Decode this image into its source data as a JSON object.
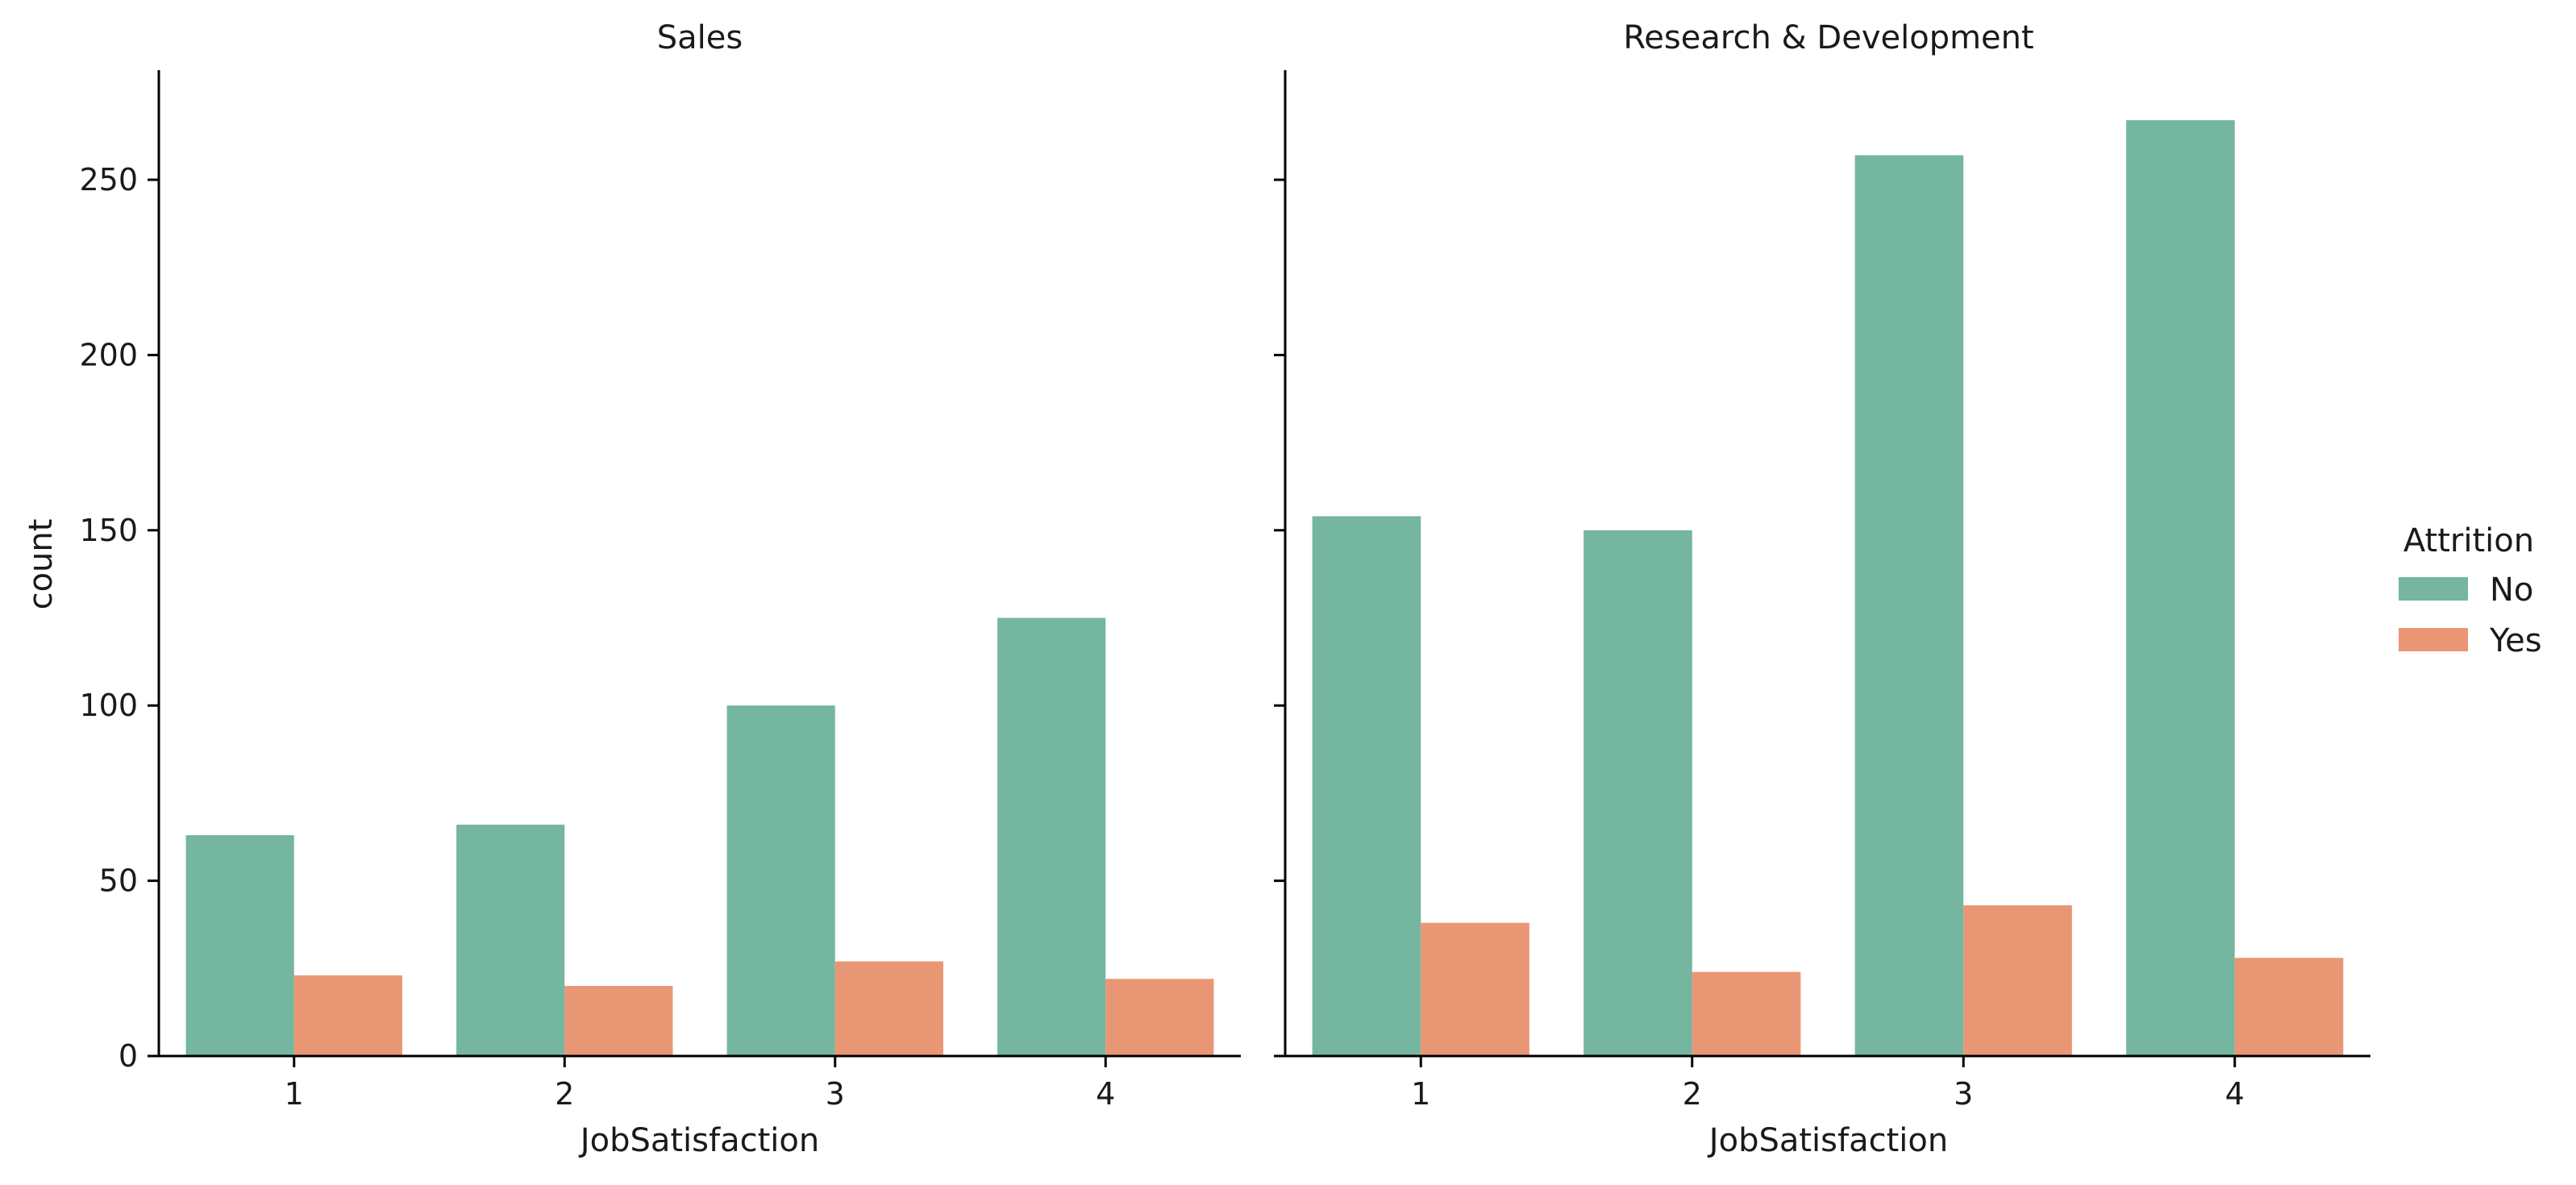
{
  "chart_data": [
    {
      "type": "bar",
      "title": "Sales",
      "xlabel": "JobSatisfaction",
      "ylabel": "count",
      "categories": [
        "1",
        "2",
        "3",
        "4"
      ],
      "series": [
        {
          "name": "No",
          "values": [
            63,
            66,
            100,
            125
          ]
        },
        {
          "name": "Yes",
          "values": [
            23,
            20,
            27,
            22
          ]
        }
      ],
      "ylim": [
        0,
        280
      ],
      "yticks": [
        0,
        50,
        100,
        150,
        200,
        250
      ],
      "grid": false
    },
    {
      "type": "bar",
      "title": "Research & Development",
      "xlabel": "JobSatisfaction",
      "ylabel": "",
      "categories": [
        "1",
        "2",
        "3",
        "4"
      ],
      "series": [
        {
          "name": "No",
          "values": [
            154,
            150,
            257,
            267
          ]
        },
        {
          "name": "Yes",
          "values": [
            38,
            24,
            43,
            28
          ]
        }
      ],
      "ylim": [
        0,
        280
      ],
      "yticks": [
        0,
        50,
        100,
        150,
        200,
        250
      ],
      "grid": false
    }
  ],
  "legend": {
    "title": "Attrition",
    "placement": "right",
    "entries": [
      {
        "label": "No",
        "color": "#74b6a0"
      },
      {
        "label": "Yes",
        "color": "#e99674"
      }
    ]
  },
  "colors": {
    "No": "#74b6a0",
    "Yes": "#e99674"
  }
}
